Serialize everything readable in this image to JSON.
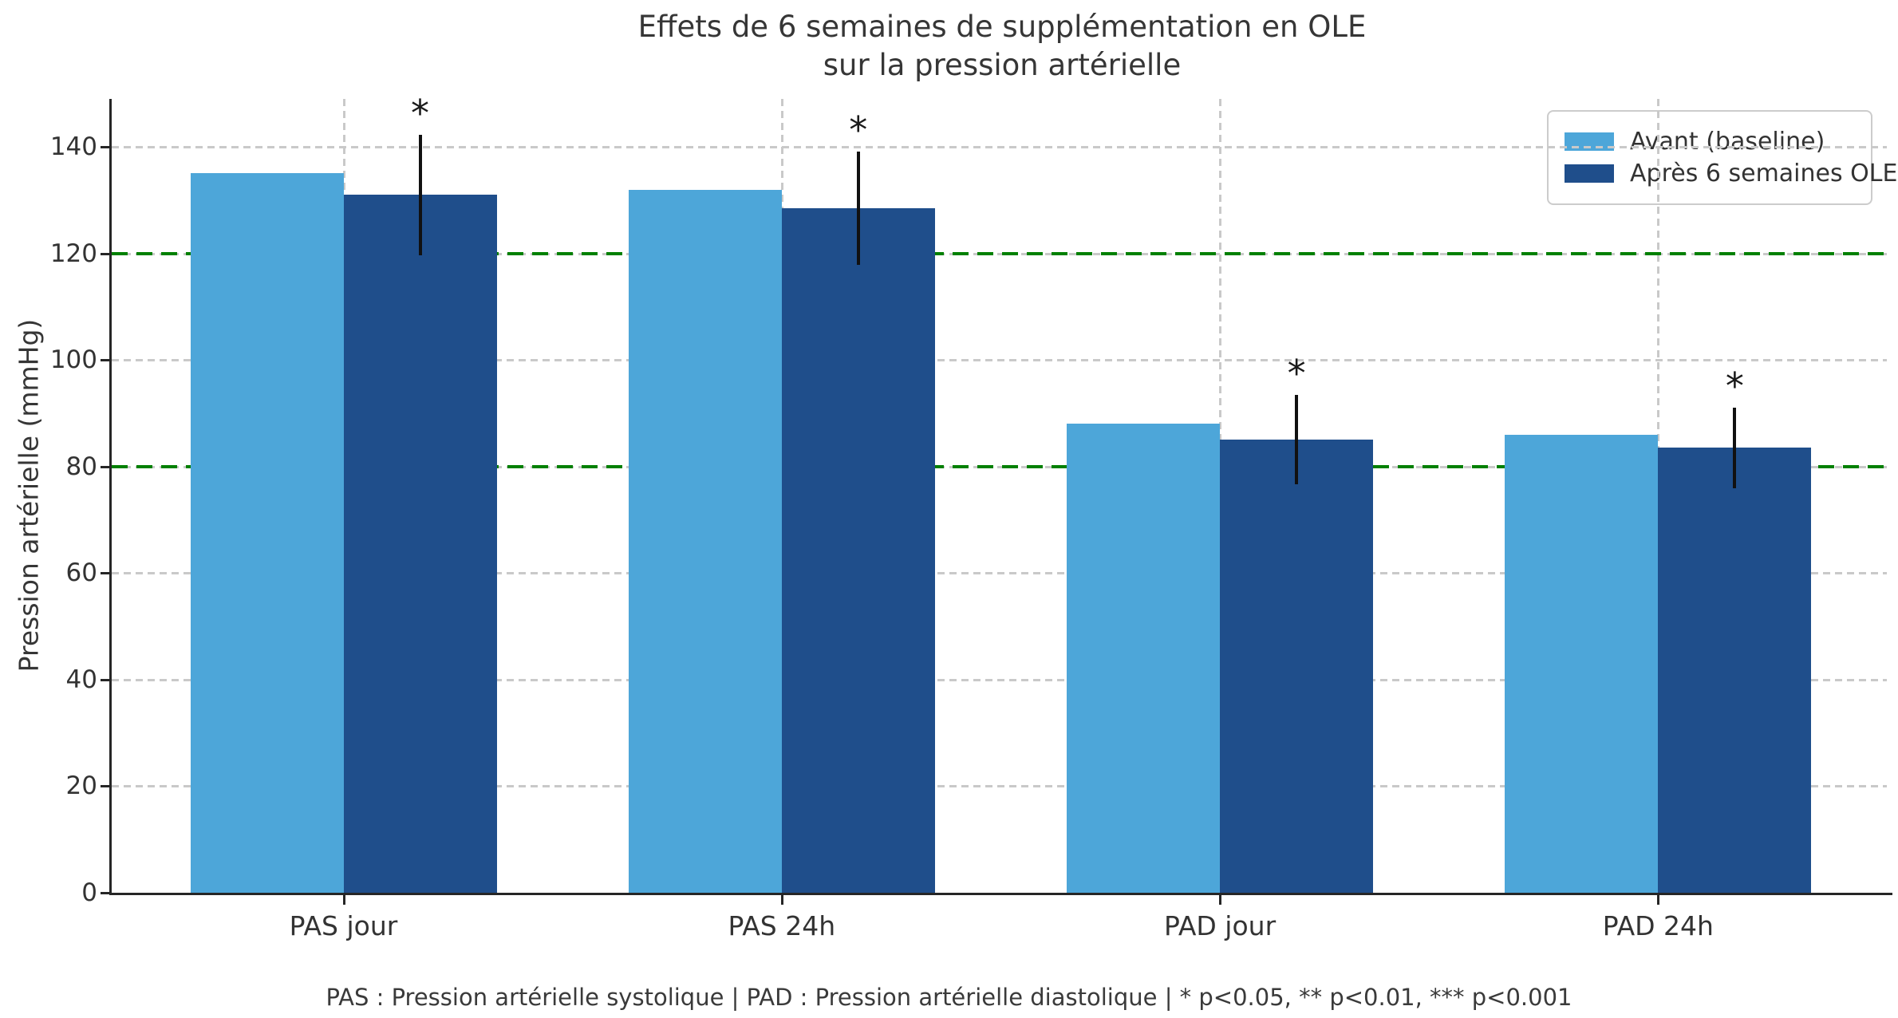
{
  "title": {
    "line1": "Effets de 6 semaines de supplémentation en OLE",
    "line2": "sur la pression artérielle"
  },
  "footer": {
    "text": "PAS : Pression artérielle systolique | PAD : Pression artérielle diastolique | * p<0.05, ** p<0.01, *** p<0.001"
  },
  "colors": {
    "avant": "#4da6d9",
    "apres": "#1f4e8b",
    "ref_line": "#008000",
    "grid": "#c9c9c9",
    "axis": "#262626",
    "error_bar": "#111111",
    "text": "#363636",
    "legend_border": "#cccccc",
    "background": "#ffffff"
  },
  "chart_data": {
    "type": "bar",
    "title": "Effets de 6 semaines de supplémentation en OLE sur la pression artérielle",
    "xlabel": "",
    "ylabel": "Pression artérielle (mmHg)",
    "categories": [
      "PAS jour",
      "PAS 24h",
      "PAD jour",
      "PAD 24h"
    ],
    "series": [
      {
        "name": "Avant (baseline)",
        "color_key": "avant",
        "values": [
          135,
          132,
          88,
          86
        ]
      },
      {
        "name": "Après 6 semaines OLE",
        "color_key": "apres",
        "values": [
          131,
          128.5,
          85,
          83.5
        ],
        "errors": [
          11.3,
          10.6,
          8.4,
          7.6
        ],
        "significance": [
          "*",
          "*",
          "*",
          "*"
        ]
      }
    ],
    "ylim": [
      0,
      149
    ],
    "yticks": [
      0,
      20,
      40,
      60,
      80,
      100,
      120,
      140
    ],
    "reference_lines": [
      {
        "y": 120,
        "style": "dashed",
        "color_key": "ref_line"
      },
      {
        "y": 80,
        "style": "dashed",
        "color_key": "ref_line"
      }
    ],
    "grid": true,
    "legend_position": "upper right",
    "bar_width_fraction": 0.35,
    "error_bar_caps": false
  }
}
